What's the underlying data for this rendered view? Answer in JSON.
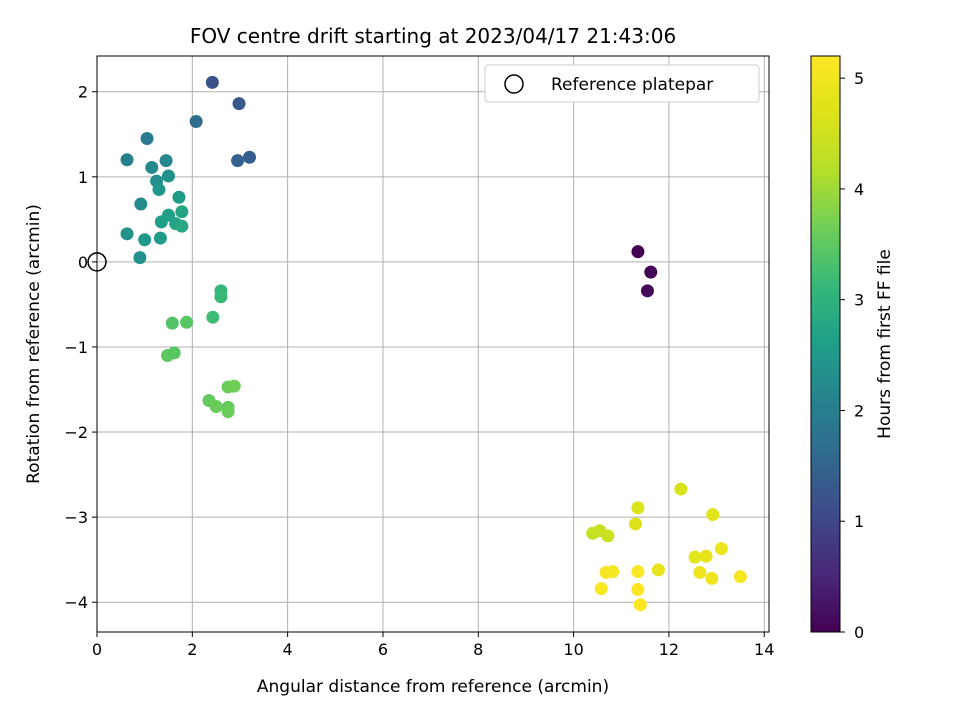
{
  "chart_data": {
    "type": "scatter",
    "title": "FOV centre drift starting at 2023/04/17 21:43:06",
    "xlabel": "Angular distance from reference (arcmin)",
    "ylabel": "Rotation from reference (arcmin)",
    "xlim": [
      0,
      14.1
    ],
    "ylim": [
      -4.35,
      2.42
    ],
    "x_ticks": [
      0,
      2,
      4,
      6,
      8,
      10,
      12,
      14
    ],
    "y_ticks": [
      2,
      1,
      0,
      -1,
      -2,
      -3,
      -4
    ],
    "grid": true,
    "legend": {
      "position": "top-right",
      "entries": [
        {
          "label": "Reference platepar",
          "marker": "hollow-circle"
        }
      ]
    },
    "reference_point": {
      "x": 0,
      "y": 0
    },
    "colorbar": {
      "label": "Hours from first FF file",
      "range": [
        0,
        5.2
      ],
      "ticks": [
        0,
        1,
        2,
        3,
        4,
        5
      ],
      "colormap": "viridis"
    },
    "points": [
      {
        "x": 11.35,
        "y": 0.12,
        "c": 0.0
      },
      {
        "x": 11.62,
        "y": -0.12,
        "c": 0.05
      },
      {
        "x": 11.55,
        "y": -0.34,
        "c": 0.1
      },
      {
        "x": 2.42,
        "y": 2.11,
        "c": 1.15
      },
      {
        "x": 2.98,
        "y": 1.86,
        "c": 1.3
      },
      {
        "x": 3.2,
        "y": 1.23,
        "c": 1.4
      },
      {
        "x": 2.95,
        "y": 1.19,
        "c": 1.45
      },
      {
        "x": 2.08,
        "y": 1.65,
        "c": 1.65
      },
      {
        "x": 1.05,
        "y": 1.45,
        "c": 1.95
      },
      {
        "x": 0.63,
        "y": 1.2,
        "c": 2.05
      },
      {
        "x": 1.45,
        "y": 1.19,
        "c": 2.15
      },
      {
        "x": 1.15,
        "y": 1.11,
        "c": 2.2
      },
      {
        "x": 1.25,
        "y": 0.95,
        "c": 2.3
      },
      {
        "x": 1.5,
        "y": 1.01,
        "c": 2.35
      },
      {
        "x": 1.3,
        "y": 0.85,
        "c": 2.45
      },
      {
        "x": 0.92,
        "y": 0.68,
        "c": 2.25
      },
      {
        "x": 1.72,
        "y": 0.76,
        "c": 2.55
      },
      {
        "x": 1.35,
        "y": 0.47,
        "c": 2.6
      },
      {
        "x": 1.5,
        "y": 0.55,
        "c": 2.65
      },
      {
        "x": 1.65,
        "y": 0.45,
        "c": 2.7
      },
      {
        "x": 1.78,
        "y": 0.59,
        "c": 2.75
      },
      {
        "x": 1.78,
        "y": 0.42,
        "c": 2.8
      },
      {
        "x": 0.63,
        "y": 0.33,
        "c": 2.4
      },
      {
        "x": 1.0,
        "y": 0.26,
        "c": 2.5
      },
      {
        "x": 1.33,
        "y": 0.28,
        "c": 2.55
      },
      {
        "x": 0.9,
        "y": 0.05,
        "c": 2.35
      },
      {
        "x": 2.6,
        "y": -0.34,
        "c": 3.1
      },
      {
        "x": 2.6,
        "y": -0.41,
        "c": 3.15
      },
      {
        "x": 2.43,
        "y": -0.65,
        "c": 3.2
      },
      {
        "x": 1.58,
        "y": -0.72,
        "c": 3.4
      },
      {
        "x": 1.88,
        "y": -0.71,
        "c": 3.45
      },
      {
        "x": 1.48,
        "y": -1.1,
        "c": 3.5
      },
      {
        "x": 1.62,
        "y": -1.07,
        "c": 3.45
      },
      {
        "x": 2.75,
        "y": -1.47,
        "c": 3.6
      },
      {
        "x": 2.88,
        "y": -1.46,
        "c": 3.65
      },
      {
        "x": 2.35,
        "y": -1.63,
        "c": 3.55
      },
      {
        "x": 2.5,
        "y": -1.7,
        "c": 3.6
      },
      {
        "x": 2.75,
        "y": -1.71,
        "c": 3.55
      },
      {
        "x": 2.75,
        "y": -1.76,
        "c": 3.6
      },
      {
        "x": 10.4,
        "y": -3.19,
        "c": 4.35
      },
      {
        "x": 10.55,
        "y": -3.16,
        "c": 4.4
      },
      {
        "x": 10.72,
        "y": -3.22,
        "c": 4.45
      },
      {
        "x": 11.35,
        "y": -2.89,
        "c": 4.65
      },
      {
        "x": 11.3,
        "y": -3.08,
        "c": 4.7
      },
      {
        "x": 12.25,
        "y": -2.67,
        "c": 4.6
      },
      {
        "x": 12.92,
        "y": -2.97,
        "c": 4.75
      },
      {
        "x": 12.55,
        "y": -3.47,
        "c": 4.8
      },
      {
        "x": 12.78,
        "y": -3.46,
        "c": 4.85
      },
      {
        "x": 13.1,
        "y": -3.37,
        "c": 4.9
      },
      {
        "x": 11.78,
        "y": -3.62,
        "c": 4.85
      },
      {
        "x": 12.65,
        "y": -3.65,
        "c": 4.95
      },
      {
        "x": 12.9,
        "y": -3.72,
        "c": 5.0
      },
      {
        "x": 13.5,
        "y": -3.7,
        "c": 5.05
      },
      {
        "x": 10.68,
        "y": -3.65,
        "c": 5.1
      },
      {
        "x": 10.82,
        "y": -3.64,
        "c": 5.1
      },
      {
        "x": 11.35,
        "y": -3.64,
        "c": 5.15
      },
      {
        "x": 10.58,
        "y": -3.84,
        "c": 5.15
      },
      {
        "x": 11.35,
        "y": -3.85,
        "c": 5.2
      },
      {
        "x": 11.4,
        "y": -4.03,
        "c": 5.2
      }
    ]
  }
}
